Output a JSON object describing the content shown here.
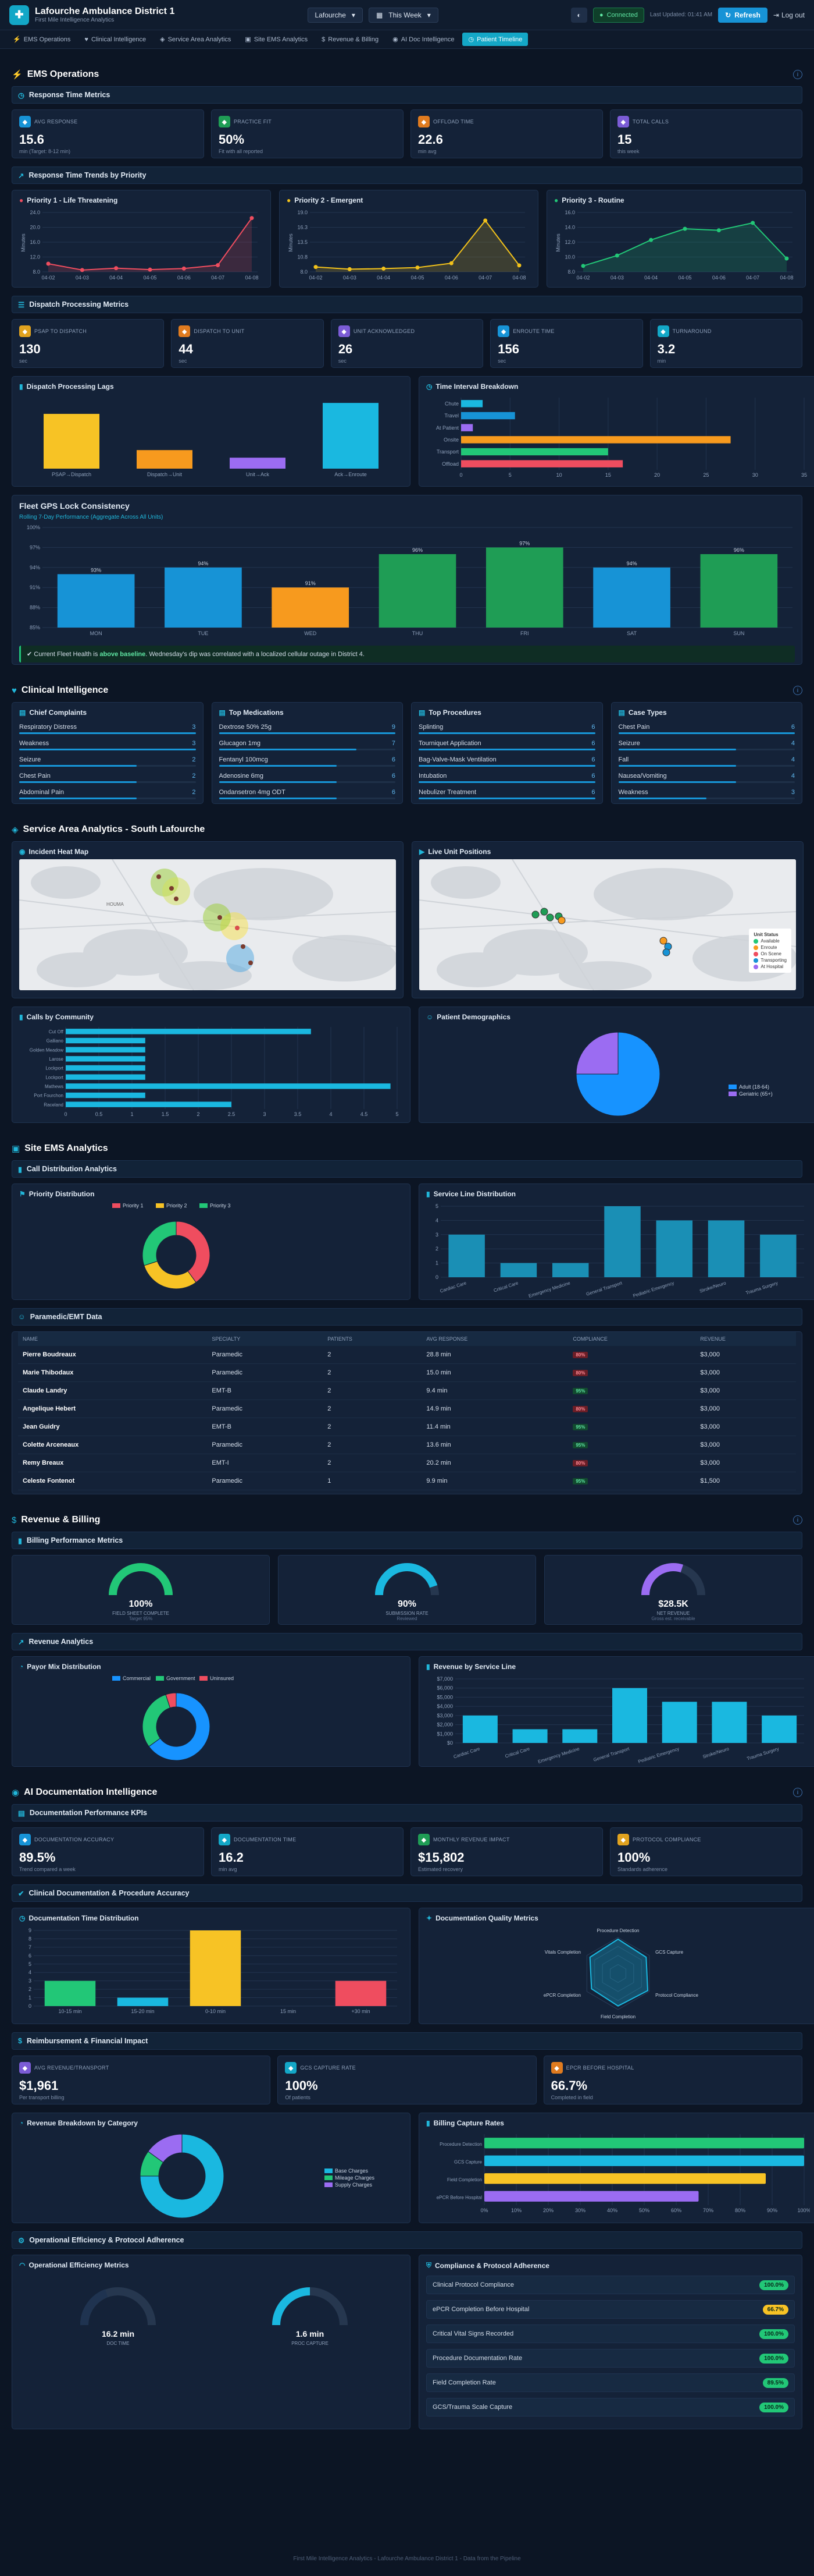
{
  "header": {
    "title": "Lafourche Ambulance District 1",
    "subtitle": "First Mile Intelligence Analytics",
    "region": "Lafourche",
    "period": "This Week",
    "status": "Connected",
    "updated": "Last Updated: 01:41 AM",
    "refresh": "Refresh",
    "logout": "Log out"
  },
  "tabs": [
    "EMS Operations",
    "Clinical Intelligence",
    "Service Area Analytics",
    "Site EMS Analytics",
    "Revenue & Billing",
    "AI Doc Intelligence",
    "Patient Timeline"
  ],
  "ems": {
    "title": "EMS Operations",
    "rt_title": "Response Time Metrics",
    "kpis": [
      {
        "label": "AVG RESPONSE",
        "value": "15.6",
        "sub": "min (Target: 8-12 min)",
        "color": "#1793d6"
      },
      {
        "label": "PRACTICE FIT",
        "value": "50%",
        "sub": "Fit with all reported",
        "color": "#1f9d55"
      },
      {
        "label": "OFFLOAD TIME",
        "value": "22.6",
        "sub": "min avg",
        "color": "#e07b1f"
      },
      {
        "label": "TOTAL CALLS",
        "value": "15",
        "sub": "this week",
        "color": "#7b5cd6"
      }
    ],
    "trend_title": "Response Time Trends by Priority",
    "priorities": [
      {
        "title": "Priority 1 - Life Threatening",
        "color": "#ef4d5f",
        "ylabel": "Minutes",
        "x": [
          "04-02",
          "04-03",
          "04-04",
          "04-05",
          "04-06",
          "04-07",
          "04-08"
        ],
        "y": [
          10.2,
          8.5,
          9.0,
          8.6,
          8.9,
          9.8,
          22.5
        ],
        "ylim": [
          8,
          24
        ]
      },
      {
        "title": "Priority 2 - Emergent",
        "color": "#f2c21b",
        "ylabel": "Minutes",
        "x": [
          "04-02",
          "04-03",
          "04-04",
          "04-05",
          "04-06",
          "04-07",
          "04-08"
        ],
        "y": [
          8.9,
          8.5,
          8.6,
          8.8,
          9.6,
          17.5,
          9.2
        ],
        "ylim": [
          8,
          19
        ]
      },
      {
        "title": "Priority 3 - Routine",
        "color": "#22c777",
        "ylabel": "Minutes",
        "x": [
          "04-02",
          "04-03",
          "04-04",
          "04-05",
          "04-06",
          "04-07",
          "04-08"
        ],
        "y": [
          8.8,
          10.2,
          12.3,
          13.8,
          13.6,
          14.6,
          9.8
        ],
        "ylim": [
          8,
          16
        ]
      }
    ],
    "disp_title": "Dispatch Processing Metrics",
    "dkpis": [
      {
        "label": "PSAP TO DISPATCH",
        "value": "130",
        "sub": "sec",
        "color": "#e0a21f"
      },
      {
        "label": "DISPATCH TO UNIT",
        "value": "44",
        "sub": "sec",
        "color": "#e07b1f"
      },
      {
        "label": "UNIT ACKNOWLEDGED",
        "value": "26",
        "sub": "sec",
        "color": "#7b5cd6"
      },
      {
        "label": "ENROUTE TIME",
        "value": "156",
        "sub": "sec",
        "color": "#1793d6"
      },
      {
        "label": "TURNAROUND",
        "value": "3.2",
        "sub": "min",
        "color": "#13a7c7"
      }
    ],
    "lag_title": "Dispatch Processing Lags",
    "lag": {
      "categories": [
        "PSAP→Dispatch",
        "Dispatch→Unit",
        "Unit→Ack",
        "Ack→Enroute"
      ],
      "values": [
        130,
        44,
        26,
        156
      ],
      "colors": [
        "#f7c325",
        "#f79a1e",
        "#9b6cf2",
        "#1ab8e0"
      ],
      "ymax": 170
    },
    "interval_title": "Time Interval Breakdown",
    "interval": {
      "categories": [
        "Chute",
        "Travel",
        "At Patient",
        "Onsite",
        "Transport",
        "Offload"
      ],
      "values": [
        2.2,
        5.5,
        1.2,
        27.5,
        15.0,
        16.5
      ],
      "colors": [
        "#1ab8e0",
        "#1793d6",
        "#9b6cf2",
        "#f79a1e",
        "#22c777",
        "#ef4d5f"
      ],
      "ticks": [
        0,
        5,
        10,
        15,
        20,
        25,
        30,
        35
      ]
    },
    "gps_title": "Fleet GPS Lock Consistency",
    "gps_sub": "Rolling 7-Day Performance (Aggregate Across All Units)",
    "gps": {
      "categories": [
        "MON",
        "TUE",
        "WED",
        "THU",
        "FRI",
        "SAT",
        "SUN"
      ],
      "values": [
        93,
        94,
        91,
        96,
        97,
        94,
        96
      ],
      "colors": [
        "#1793d6",
        "#1793d6",
        "#f79a1e",
        "#1f9d55",
        "#1f9d55",
        "#1793d6",
        "#1f9d55"
      ],
      "labels": [
        "93%",
        "94%",
        "91%",
        "96%",
        "97%",
        "94%",
        "96%"
      ]
    },
    "alert_pre": "Current Fleet Health is",
    "alert_b": "above baseline",
    "alert_post": ". Wednesday's dip was correlated with a localized cellular outage in District 4."
  },
  "clinical": {
    "title": "Clinical Intelligence",
    "lists": [
      {
        "title": "Chief Complaints",
        "items": [
          [
            "Respiratory Distress",
            3
          ],
          [
            "Weakness",
            3
          ],
          [
            "Seizure",
            2
          ],
          [
            "Chest Pain",
            2
          ],
          [
            "Abdominal Pain",
            2
          ]
        ]
      },
      {
        "title": "Top Medications",
        "items": [
          [
            "Dextrose 50% 25g",
            9
          ],
          [
            "Glucagon 1mg",
            7
          ],
          [
            "Fentanyl 100mcg",
            6
          ],
          [
            "Adenosine 6mg",
            6
          ],
          [
            "Ondansetron 4mg ODT",
            6
          ]
        ]
      },
      {
        "title": "Top Procedures",
        "items": [
          [
            "Splinting",
            6
          ],
          [
            "Tourniquet Application",
            6
          ],
          [
            "Bag-Valve-Mask Ventilation",
            6
          ],
          [
            "Intubation",
            6
          ],
          [
            "Nebulizer Treatment",
            6
          ]
        ]
      },
      {
        "title": "Case Types",
        "items": [
          [
            "Chest Pain",
            6
          ],
          [
            "Seizure",
            4
          ],
          [
            "Fall",
            4
          ],
          [
            "Nausea/Vomiting",
            4
          ],
          [
            "Weakness",
            3
          ]
        ]
      }
    ]
  },
  "service": {
    "title": "Service Area Analytics - South Lafourche",
    "heat_title": "Incident Heat Map",
    "live_title": "Live Unit Positions",
    "map_label": "HOUMA",
    "legend_title": "Unit Status",
    "legend": [
      [
        "Available",
        "#22c777"
      ],
      [
        "Enroute",
        "#f79a1e"
      ],
      [
        "On Scene",
        "#ef4d5f"
      ],
      [
        "Transporting",
        "#1793d6"
      ],
      [
        "At Hospital",
        "#9b6cf2"
      ]
    ],
    "community_title": "Calls by Community",
    "community": {
      "categories": [
        "Cut Off",
        "Galliano",
        "Golden Meadow",
        "Larose",
        "Lockport",
        "Lockport",
        "Mathews",
        "Port Fourchon",
        "Raceland"
      ],
      "values": [
        3.7,
        1.2,
        1.2,
        1.2,
        1.2,
        1.2,
        4.9,
        1.2,
        2.5
      ],
      "ticks": [
        0,
        0.5,
        1,
        1.5,
        2,
        2.5,
        3,
        3.5,
        4,
        4.5,
        5
      ]
    },
    "demo_title": "Patient Demographics",
    "demo": {
      "labels": [
        "Adult (18-64)",
        "Geriatric (65+)"
      ],
      "values": [
        75,
        25
      ],
      "colors": [
        "#1793ff",
        "#9b6cf2"
      ]
    }
  },
  "site": {
    "title": "Site EMS Analytics",
    "cd_title": "Call Distribution Analytics",
    "prio_title": "Priority Distribution",
    "prio": {
      "labels": [
        "Priority 1",
        "Priority 2",
        "Priority 3"
      ],
      "values": [
        40,
        30,
        30
      ],
      "colors": [
        "#ef4d5f",
        "#f7c325",
        "#22c777"
      ]
    },
    "sl_title": "Service Line Distribution",
    "sl": {
      "categories": [
        "Cardiac Care",
        "Critical Care",
        "Emergency Medicine",
        "General Transport",
        "Pediatric Emergency",
        "Stroke/Neuro",
        "Trauma Surgery"
      ],
      "values": [
        3,
        1,
        1,
        5,
        4,
        4,
        3
      ],
      "ymax": 5
    },
    "para_title": "Paramedic/EMT Data",
    "cols": [
      "NAME",
      "SPECIALTY",
      "PATIENTS",
      "AVG RESPONSE",
      "COMPLIANCE",
      "REVENUE"
    ],
    "rows": [
      [
        "Pierre Boudreaux",
        "Paramedic",
        "2",
        "28.8 min",
        "bad",
        "$3,000"
      ],
      [
        "Marie Thibodaux",
        "Paramedic",
        "2",
        "15.0 min",
        "bad",
        "$3,000"
      ],
      [
        "Claude Landry",
        "EMT-B",
        "2",
        "9.4 min",
        "good",
        "$3,000"
      ],
      [
        "Angelique Hebert",
        "Paramedic",
        "2",
        "14.9 min",
        "bad",
        "$3,000"
      ],
      [
        "Jean Guidry",
        "EMT-B",
        "2",
        "11.4 min",
        "good",
        "$3,000"
      ],
      [
        "Colette Arceneaux",
        "Paramedic",
        "2",
        "13.6 min",
        "good",
        "$3,000"
      ],
      [
        "Remy Breaux",
        "EMT-I",
        "2",
        "20.2 min",
        "bad",
        "$3,000"
      ],
      [
        "Celeste Fontenot",
        "Paramedic",
        "1",
        "9.9 min",
        "good",
        "$1,500"
      ]
    ],
    "badge_bad": "80%",
    "badge_good": "95%"
  },
  "revenue": {
    "title": "Revenue & Billing",
    "bp_title": "Billing Performance Metrics",
    "gauges": [
      {
        "value": "100%",
        "label": "FIELD SHEET COMPLETE",
        "sub": "Target 95%",
        "pct": 1.0,
        "color": "#22c777"
      },
      {
        "value": "90%",
        "label": "SUBMISSION RATE",
        "sub": "Reviewed",
        "pct": 0.9,
        "color": "#1ab8e0"
      },
      {
        "value": "$28.5K",
        "label": "NET REVENUE",
        "sub": "Gross est. receivable",
        "pct": 0.6,
        "color": "#9b6cf2"
      }
    ],
    "ra_title": "Revenue Analytics",
    "payor_title": "Payor Mix Distribution",
    "payor": {
      "labels": [
        "Commercial",
        "Government",
        "Uninsured"
      ],
      "values": [
        65,
        30,
        5
      ],
      "colors": [
        "#1793ff",
        "#22c777",
        "#ef4d5f"
      ]
    },
    "rsl_title": "Revenue by Service Line",
    "rsl": {
      "categories": [
        "Cardiac Care",
        "Critical Care",
        "Emergency Medicine",
        "General Transport",
        "Pediatric Emergency",
        "Stroke/Neuro",
        "Trauma Surgery"
      ],
      "values": [
        3000,
        1500,
        1500,
        6000,
        4500,
        4500,
        3000
      ],
      "ticks": [
        "$0",
        "$1,000",
        "$2,000",
        "$3,000",
        "$4,000",
        "$5,000",
        "$6,000",
        "$7,000"
      ],
      "ymax": 7000
    }
  },
  "ai": {
    "title": "AI Documentation Intelligence",
    "kpi_title": "Documentation Performance KPIs",
    "kpis": [
      {
        "label": "DOCUMENTATION ACCURACY",
        "value": "89.5%",
        "sub": "Trend compared a week",
        "color": "#1793d6"
      },
      {
        "label": "DOCUMENTATION TIME",
        "value": "16.2",
        "sub": "min avg",
        "color": "#13a7c7"
      },
      {
        "label": "MONTHLY REVENUE IMPACT",
        "value": "$15,802",
        "sub": "Estimated recovery",
        "color": "#1f9d55"
      },
      {
        "label": "PROTOCOL COMPLIANCE",
        "value": "100%",
        "sub": "Standards adherence",
        "color": "#e0a21f"
      }
    ],
    "cda_title": "Clinical Documentation & Procedure Accuracy",
    "dt_title": "Documentation Time Distribution",
    "dt": {
      "categories": [
        "10-15 min",
        "15-20 min",
        "0-10 min",
        "15 min",
        "+30 min"
      ],
      "values": [
        3,
        1,
        9,
        0,
        3
      ],
      "colors": [
        "#22c777",
        "#1ab8e0",
        "#f7c325",
        "#ef4d5f",
        "#ef4d5f"
      ],
      "ymax": 9
    },
    "dq_title": "Documentation Quality Metrics",
    "dq": {
      "labels": [
        "Procedure Detection",
        "GCS Capture",
        "Protocol Compliance",
        "Field Completion",
        "ePCR Completion",
        "Vitals Completion"
      ],
      "values": [
        0.95,
        0.9,
        0.95,
        0.9,
        0.85,
        0.9
      ]
    },
    "rf_title": "Reimbursement & Financial Impact",
    "rkpis": [
      {
        "label": "AVG REVENUE/TRANSPORT",
        "value": "$1,961",
        "sub": "Per transport billing",
        "color": "#7b5cd6"
      },
      {
        "label": "GCS CAPTURE RATE",
        "value": "100%",
        "sub": "Of patients",
        "color": "#13a7c7"
      },
      {
        "label": "EPCR BEFORE HOSPITAL",
        "value": "66.7%",
        "sub": "Completed in field",
        "color": "#e07b1f"
      }
    ],
    "rb_title": "Revenue Breakdown by Category",
    "rb": {
      "labels": [
        "Base Charges",
        "Mileage Charges",
        "Supply Charges"
      ],
      "values": [
        75,
        10,
        15
      ],
      "colors": [
        "#1ab8e0",
        "#22c777",
        "#9b6cf2"
      ]
    },
    "bc_title": "Billing Capture Rates",
    "bc": {
      "categories": [
        "Procedure Detection",
        "GCS Capture",
        "Field Completion",
        "ePCR Before Hospital"
      ],
      "values": [
        100,
        100,
        88,
        67
      ],
      "colors": [
        "#22c777",
        "#1ab8e0",
        "#f7c325",
        "#9b6cf2"
      ],
      "ticks": [
        "0%",
        "10%",
        "20%",
        "30%",
        "40%",
        "50%",
        "60%",
        "70%",
        "80%",
        "90%",
        "100%"
      ]
    },
    "oe_title": "Operational Efficiency & Protocol Adherence",
    "om_title": "Operational Efficiency Metrics",
    "og": [
      {
        "value": "16.2 min",
        "label": "DOC TIME",
        "pct": 0.55,
        "color": "#1f3350"
      },
      {
        "value": "1.6 min",
        "label": "PROC CAPTURE",
        "pct": 0.5,
        "color": "#1ab8e0"
      }
    ],
    "cp_title": "Compliance & Protocol Adherence",
    "cp": [
      [
        "Clinical Protocol Compliance",
        "100.0%",
        "#22c777"
      ],
      [
        "ePCR Completion Before Hospital",
        "66.7%",
        "#f7c325"
      ],
      [
        "Critical Vital Signs Recorded",
        "100.0%",
        "#22c777"
      ],
      [
        "Procedure Documentation Rate",
        "100.0%",
        "#22c777"
      ],
      [
        "Field Completion Rate",
        "89.5%",
        "#22c777"
      ],
      [
        "GCS/Trauma Scale Capture",
        "100.0%",
        "#22c777"
      ]
    ]
  },
  "footer": "First Mile Intelligence Analytics - Lafourche Ambulance District 1 - Data from the Pipeline"
}
